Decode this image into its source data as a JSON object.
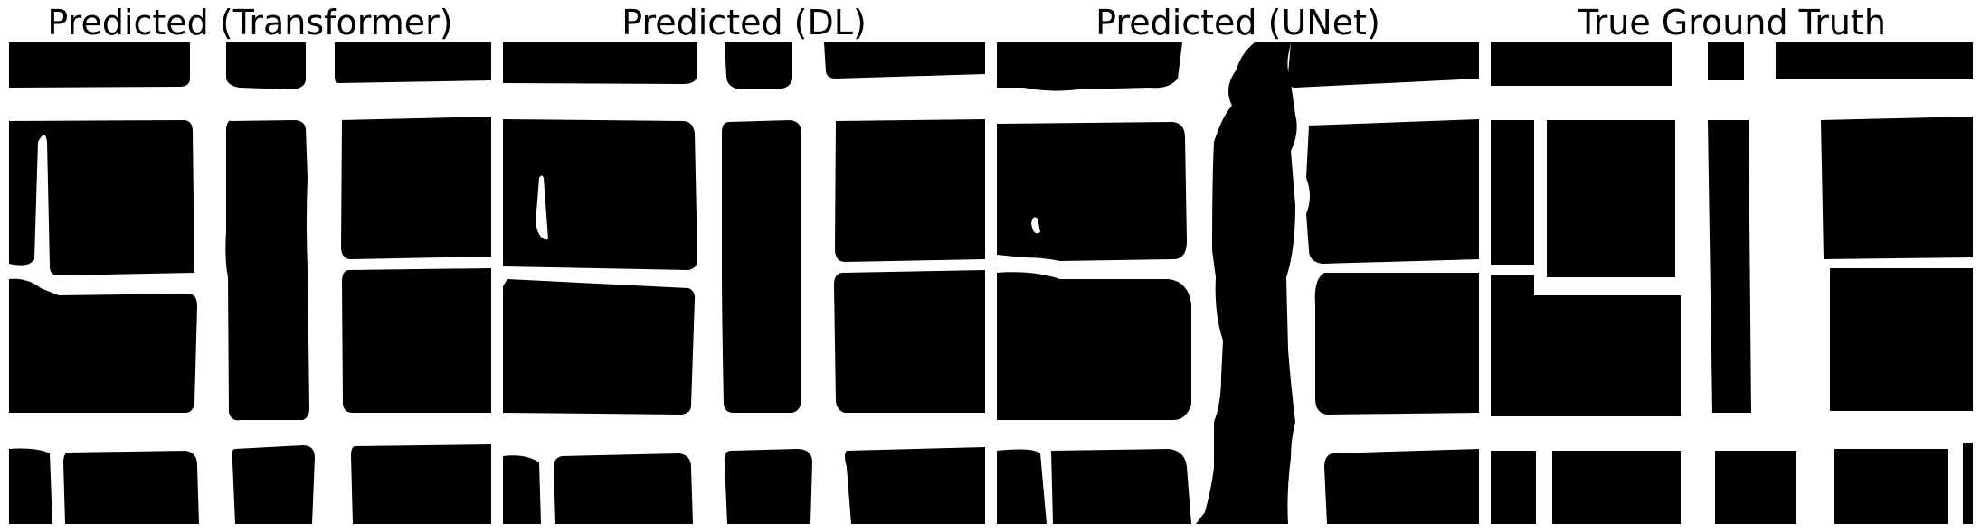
{
  "panels": [
    {
      "id": "transformer",
      "title": "Predicted (Transformer)"
    },
    {
      "id": "dl",
      "title": "Predicted (DL)"
    },
    {
      "id": "unet",
      "title": "Predicted (UNet)"
    },
    {
      "id": "gt",
      "title": "True Ground Truth"
    }
  ],
  "colors": {
    "mask_foreground": "#000000",
    "mask_background": "#ffffff"
  }
}
